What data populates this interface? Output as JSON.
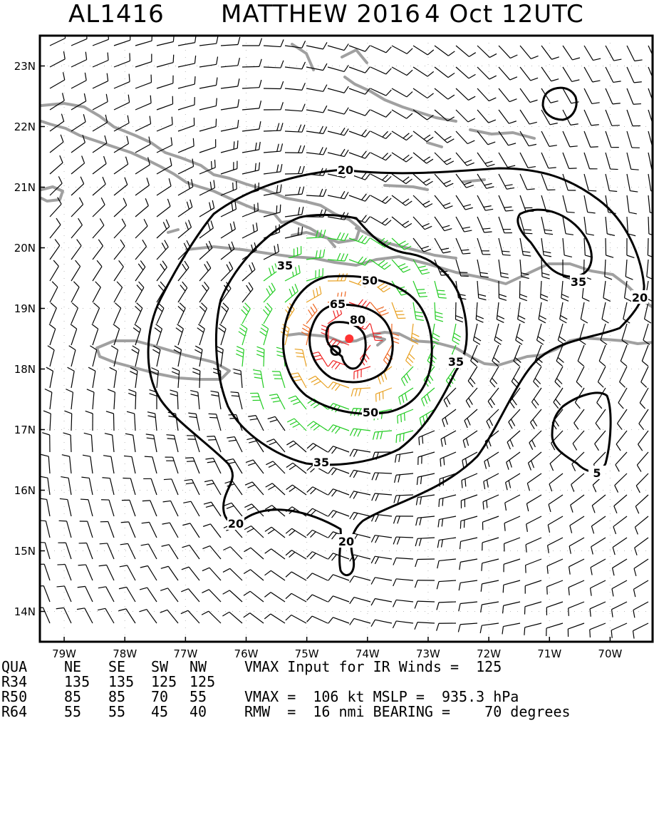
{
  "title": {
    "storm_id": "AL1416",
    "storm_name": "MATTHEW 2016",
    "time": "4 Oct 12UTC"
  },
  "map": {
    "lon_range": [
      -79.4,
      -69.3
    ],
    "lat_range": [
      13.5,
      23.5
    ],
    "lat_labels": [
      "23N",
      "22N",
      "21N",
      "20N",
      "19N",
      "18N",
      "17N",
      "16N",
      "15N",
      "14N"
    ],
    "lat_values": [
      23,
      22,
      21,
      20,
      19,
      18,
      17,
      16,
      15,
      14
    ],
    "lon_labels": [
      "79W",
      "78W",
      "77W",
      "76W",
      "75W",
      "74W",
      "73W",
      "72W",
      "71W",
      "70W"
    ],
    "lon_values": [
      -79,
      -78,
      -77,
      -76,
      -75,
      -74,
      -73,
      -72,
      -71,
      -70
    ],
    "storm_center": {
      "lon": -74.3,
      "lat": 18.5
    },
    "contour_labels": [
      "20",
      "35",
      "50",
      "65",
      "80",
      "20",
      "35",
      "20",
      "35",
      "50",
      "35",
      "20",
      "5"
    ],
    "colors": {
      "barb_weak": "#000000",
      "barb_34kt": "#22cc22",
      "barb_50kt": "#e8a020",
      "barb_64kt": "#ee6620",
      "barb_core": "#ee2222",
      "coastline": "#a0a0a0",
      "contour": "#000000",
      "center": "#ff3333"
    }
  },
  "table": {
    "header": {
      "qua": "QUA",
      "ne": "NE",
      "se": "SE",
      "sw": "SW",
      "nw": "NW",
      "right": "VMAX Input for IR Winds =  125"
    },
    "r34": {
      "label": "R34",
      "ne": "135",
      "se": "135",
      "sw": "125",
      "nw": "125",
      "right": ""
    },
    "r50": {
      "label": "R50",
      "ne": "85",
      "se": "85",
      "sw": "70",
      "nw": "55",
      "right": "VMAX =  106 kt MSLP =  935.3 hPa"
    },
    "r64": {
      "label": "R64",
      "ne": "55",
      "se": "55",
      "sw": "45",
      "nw": "40",
      "right": "RMW  =  16 nmi BEARING =    70 degrees"
    }
  }
}
